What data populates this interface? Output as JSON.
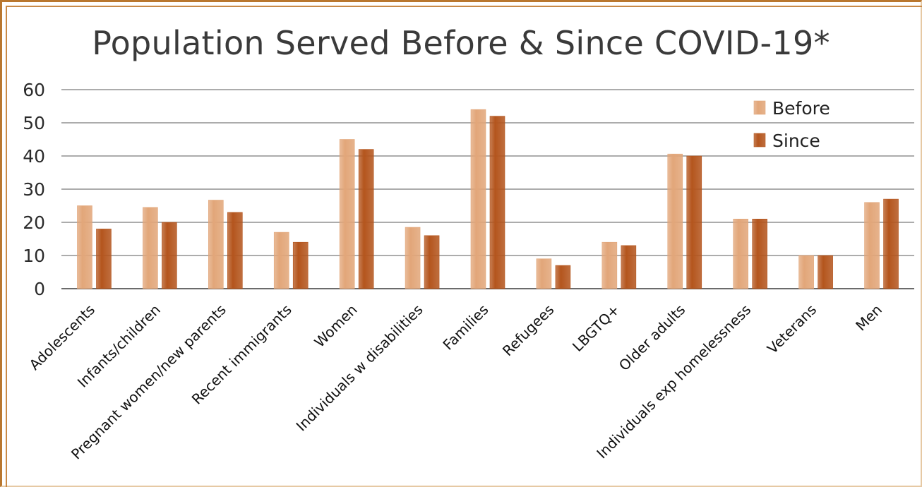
{
  "chart_data": {
    "type": "bar",
    "title": "Population Served Before & Since COVID-19*",
    "categories": [
      "Adolescents",
      "Infants/children",
      "Pregnant women/new parents",
      "Recent immigrants",
      "Women",
      "Individuals w disabilities",
      "Families",
      "Refugees",
      "LBGTQ+",
      "Older adults",
      "Individuals exp homelessness",
      "Veterans",
      "Men"
    ],
    "series": [
      {
        "name": "Before",
        "values": [
          25,
          24.5,
          26.7,
          17,
          45,
          18.5,
          54,
          9,
          14,
          40.6,
          21,
          10,
          26
        ],
        "color": "#e2a679"
      },
      {
        "name": "Since",
        "values": [
          18,
          20,
          23,
          14,
          42,
          16,
          52,
          7,
          13,
          40,
          21,
          10,
          27
        ],
        "color": "#b4551d"
      }
    ],
    "ylim": [
      0,
      60
    ],
    "yticks": [
      0,
      10,
      20,
      30,
      40,
      50,
      60
    ],
    "grid": true,
    "legend_position": "top-right"
  }
}
